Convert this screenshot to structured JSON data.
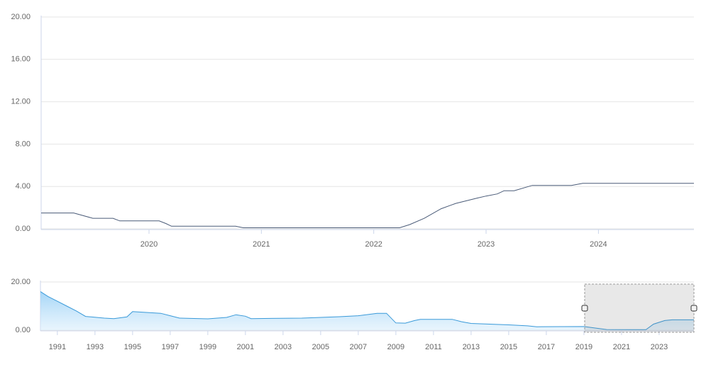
{
  "chart_data": [
    {
      "type": "line",
      "x": [
        2019.04,
        2019.33,
        2019.5,
        2019.68,
        2019.74,
        2020.09,
        2020.15,
        2020.2,
        2020.77,
        2020.84,
        2022.23,
        2022.32,
        2022.45,
        2022.6,
        2022.73,
        2022.92,
        2023.0,
        2023.1,
        2023.16,
        2023.25,
        2023.41,
        2023.76,
        2023.86,
        2024.85
      ],
      "series": [
        {
          "color": "#4a5b78",
          "values": [
            1.5,
            1.5,
            1.0,
            1.0,
            0.75,
            0.75,
            0.5,
            0.25,
            0.25,
            0.1,
            0.1,
            0.4,
            1.0,
            1.9,
            2.4,
            2.9,
            3.1,
            3.3,
            3.6,
            3.6,
            4.1,
            4.1,
            4.3,
            4.3
          ]
        }
      ],
      "xlim": [
        2019.04,
        2024.85
      ],
      "xticks": [
        2020,
        2021,
        2022,
        2023,
        2024
      ],
      "ylim": [
        0,
        20
      ],
      "yticks": [
        {
          "value": 0,
          "label": "0.00"
        },
        {
          "value": 4,
          "label": "4.00"
        },
        {
          "value": 8,
          "label": "8.00"
        },
        {
          "value": 12,
          "label": "12.00"
        },
        {
          "value": 16,
          "label": "16.00"
        },
        {
          "value": 20,
          "label": "20.00"
        }
      ],
      "grid": true
    },
    {
      "type": "area",
      "x": [
        1990.1,
        1990.5,
        1991,
        1991.5,
        1992,
        1992.5,
        1993.5,
        1994,
        1994.7,
        1995,
        1996.5,
        1997,
        1997.5,
        1999,
        2000,
        2000.5,
        2001,
        2001.3,
        2004,
        2006,
        2007,
        2008,
        2008.5,
        2009,
        2009.5,
        2010,
        2010.3,
        2012,
        2012.5,
        2013,
        2015,
        2016,
        2016.5,
        2019,
        2020.2,
        2022.3,
        2022.7,
        2023.3,
        2023.7,
        2024.85
      ],
      "series": [
        {
          "color": "#3a9ad9",
          "values": [
            16,
            14,
            12,
            10,
            8,
            5.7,
            5,
            4.8,
            5.5,
            7.7,
            7,
            6,
            5,
            4.7,
            5.3,
            6.4,
            5.8,
            4.8,
            5,
            5.6,
            6,
            7,
            7,
            3,
            2.9,
            4,
            4.5,
            4.5,
            3.5,
            2.8,
            2.2,
            1.8,
            1.4,
            1.5,
            0.25,
            0.2,
            2.5,
            4,
            4.3,
            4.3
          ]
        }
      ],
      "xlim": [
        1990.1,
        2024.85
      ],
      "xticks": [
        1991,
        1993,
        1995,
        1997,
        1999,
        2001,
        2003,
        2005,
        2007,
        2009,
        2011,
        2013,
        2015,
        2017,
        2019,
        2021,
        2023
      ],
      "ylim": [
        0,
        20
      ],
      "yticks": [
        {
          "value": 0,
          "label": "0.00"
        },
        {
          "value": 20,
          "label": "20.00"
        }
      ],
      "grid": true
    }
  ]
}
